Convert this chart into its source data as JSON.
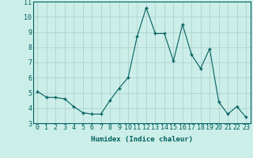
{
  "x": [
    0,
    1,
    2,
    3,
    4,
    5,
    6,
    7,
    8,
    9,
    10,
    11,
    12,
    13,
    14,
    15,
    16,
    17,
    18,
    19,
    20,
    21,
    22,
    23
  ],
  "y": [
    5.1,
    4.7,
    4.7,
    4.6,
    4.1,
    3.7,
    3.6,
    3.6,
    4.5,
    5.3,
    6.0,
    8.7,
    10.6,
    8.9,
    8.9,
    7.1,
    9.5,
    7.5,
    6.6,
    7.9,
    4.4,
    3.6,
    4.1,
    3.4
  ],
  "xlim": [
    -0.5,
    23.5
  ],
  "ylim": [
    3,
    11
  ],
  "yticks": [
    3,
    4,
    5,
    6,
    7,
    8,
    9,
    10,
    11
  ],
  "xticks": [
    0,
    1,
    2,
    3,
    4,
    5,
    6,
    7,
    8,
    9,
    10,
    11,
    12,
    13,
    14,
    15,
    16,
    17,
    18,
    19,
    20,
    21,
    22,
    23
  ],
  "xlabel": "Humidex (Indice chaleur)",
  "line_color": "#006060",
  "marker_color": "#006060",
  "bg_color": "#cceee8",
  "grid_color": "#aacccc",
  "xlabel_fontsize": 6.5,
  "tick_fontsize": 6.0
}
